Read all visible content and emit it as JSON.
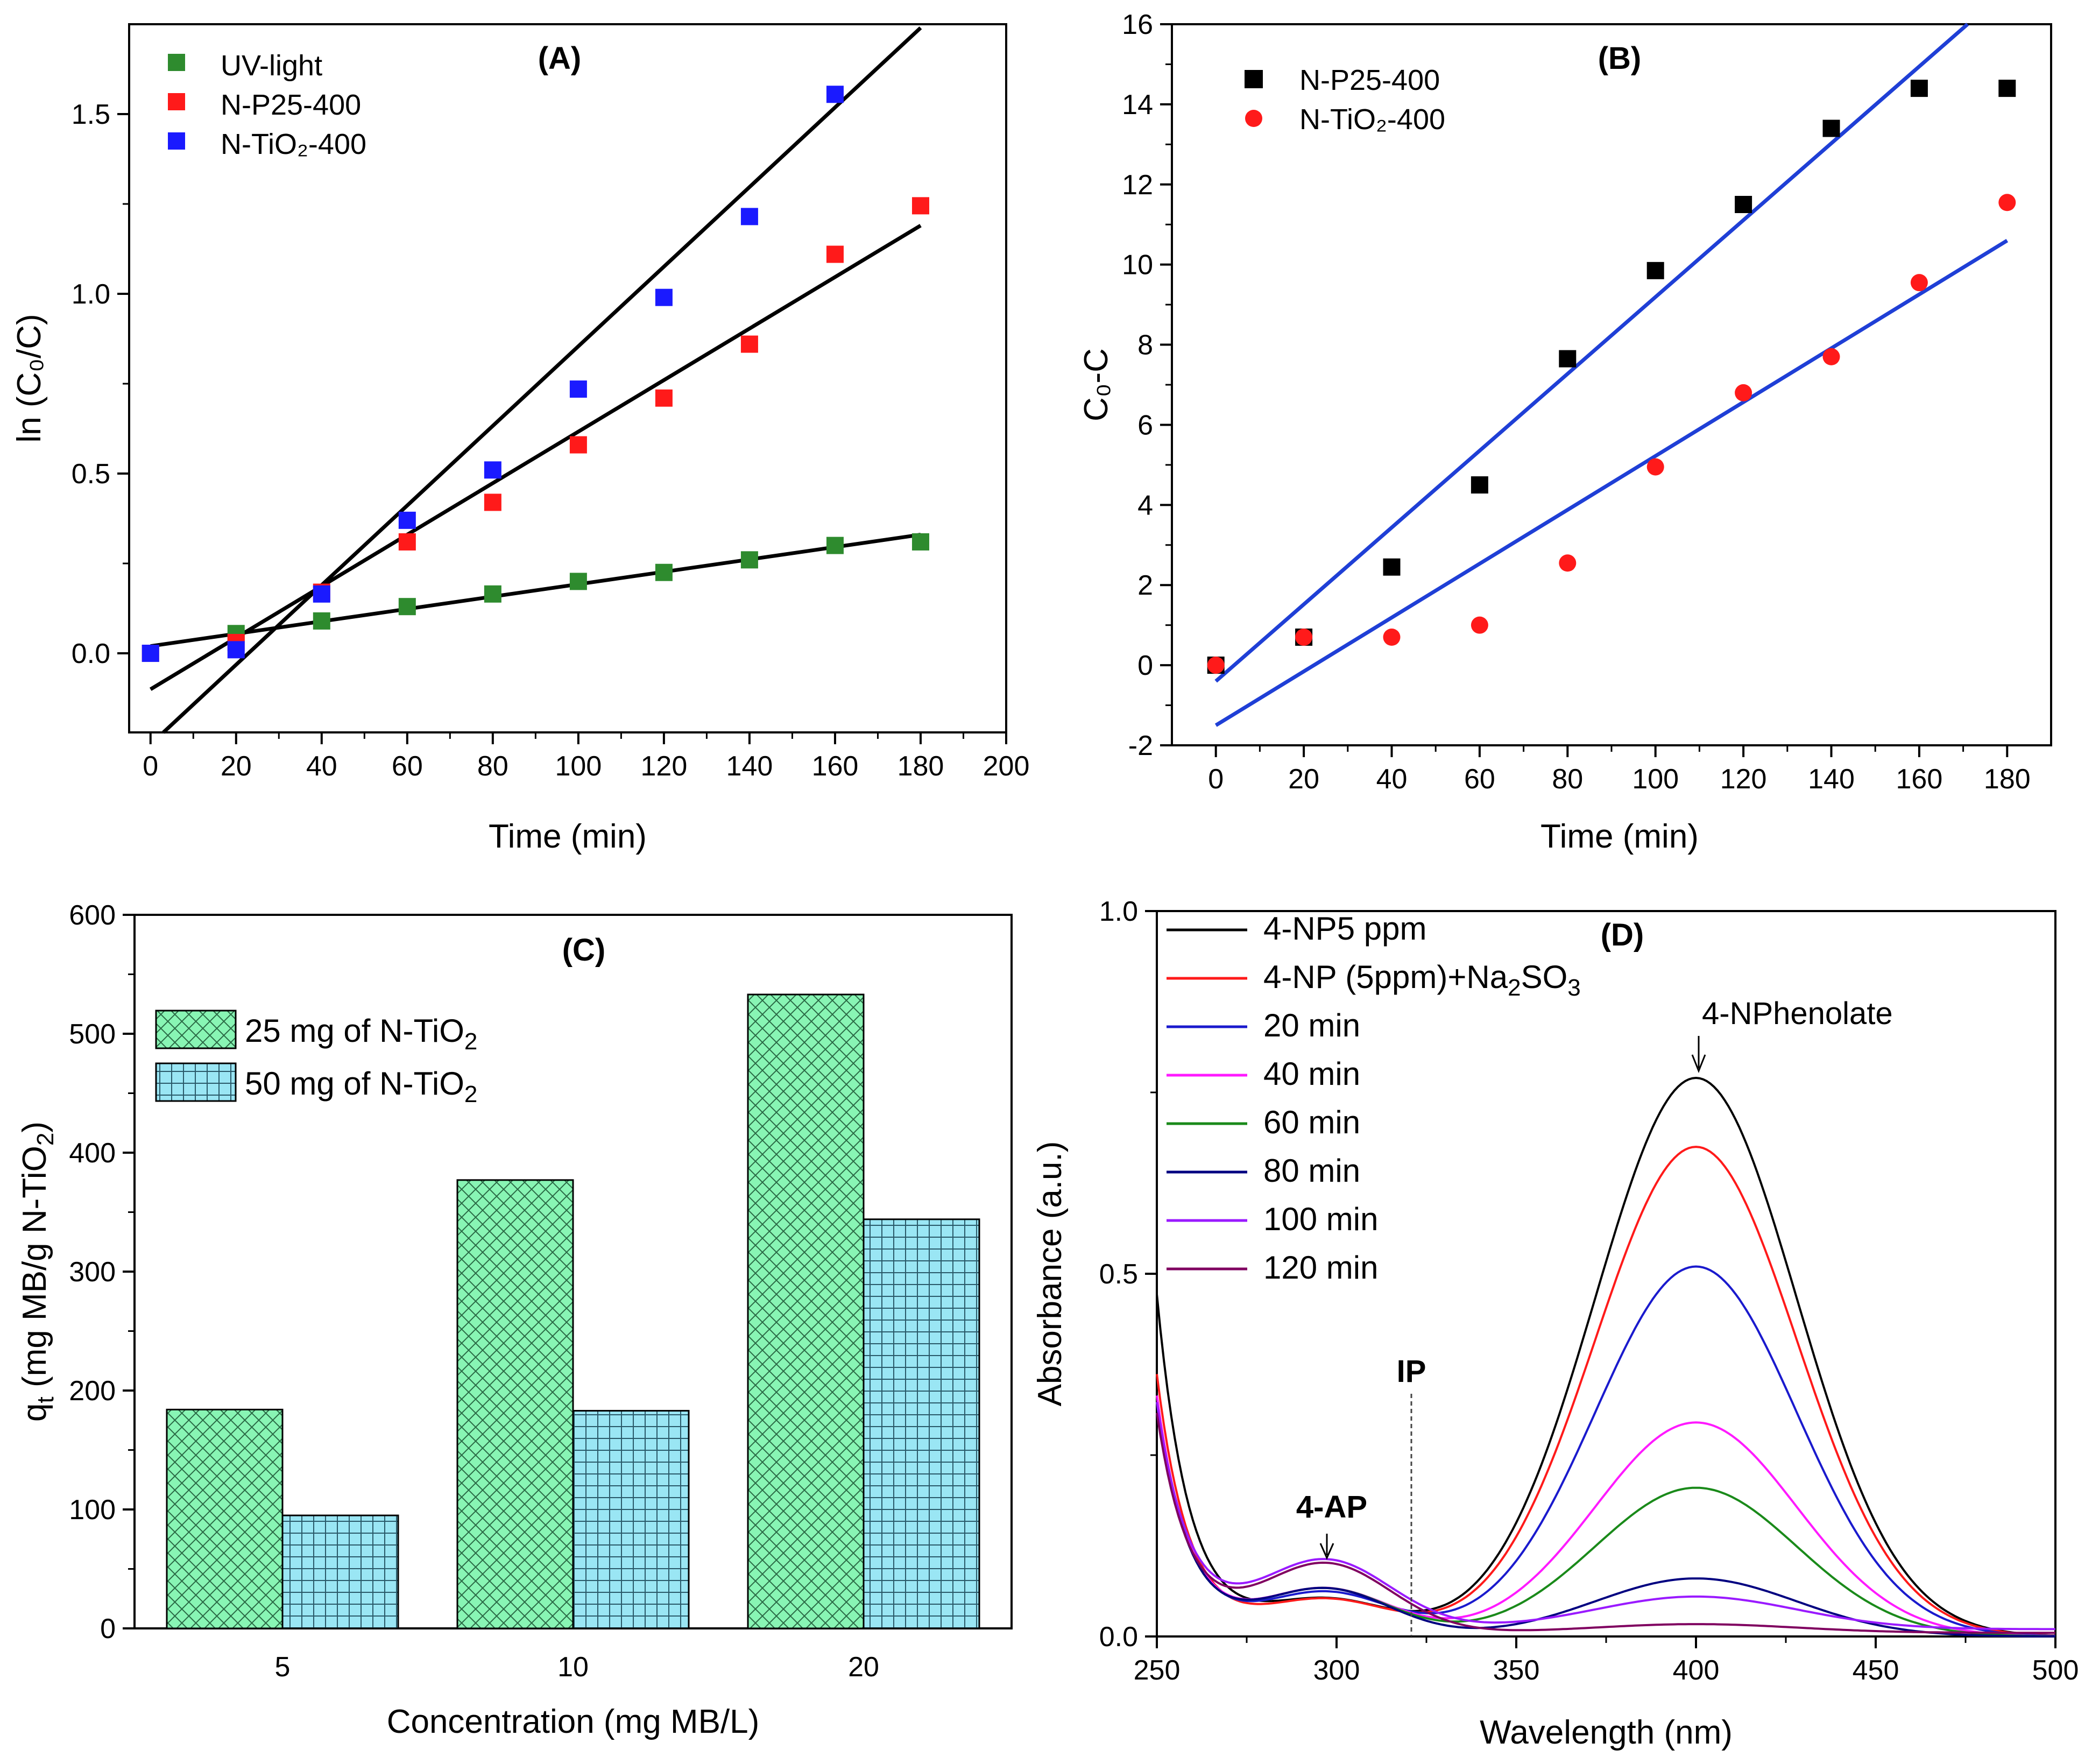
{
  "colors": {
    "green": "#2e8b2e",
    "red": "#ff1a1a",
    "blue": "#1a1aff",
    "black": "#000000",
    "fitA": "#000000",
    "fitB": "#1f3fd6",
    "barGreen": "#88f5b4",
    "barBlue": "#9ae6f4"
  },
  "chart_data": [
    {
      "id": "A",
      "type": "scatter",
      "panel_label": "(A)",
      "xlabel": "Time (min)",
      "ylabel": "ln (C₀/C)",
      "xlim": [
        -5,
        200
      ],
      "ylim": [
        -0.22,
        1.75
      ],
      "xticks": [
        0,
        20,
        40,
        60,
        80,
        100,
        120,
        140,
        160,
        180,
        200
      ],
      "yticks": [
        0.0,
        0.5,
        1.0,
        1.5
      ],
      "ytick_labels": [
        "0.0",
        "0.5",
        "1.0",
        "1.5"
      ],
      "legend_position": "top-left",
      "series": [
        {
          "name": "UV-light",
          "color_key": "green",
          "marker": "square",
          "x": [
            20,
            40,
            60,
            80,
            100,
            120,
            140,
            160,
            180
          ],
          "y": [
            0.055,
            0.09,
            0.13,
            0.165,
            0.2,
            0.225,
            0.26,
            0.3,
            0.31
          ],
          "fit": {
            "x": [
              0,
              180
            ],
            "y": [
              0.02,
              0.33
            ]
          }
        },
        {
          "name": "N-P25-400",
          "color_key": "red",
          "marker": "square",
          "x": [
            0,
            20,
            40,
            60,
            80,
            100,
            120,
            140,
            160,
            180
          ],
          "y": [
            0.0,
            0.03,
            0.17,
            0.31,
            0.42,
            0.58,
            0.71,
            0.86,
            1.11,
            1.245
          ],
          "fit": {
            "x": [
              0,
              180
            ],
            "y": [
              -0.1,
              1.19
            ]
          }
        },
        {
          "name": "N-TiO₂-400",
          "color_key": "blue",
          "marker": "square",
          "x": [
            0,
            20,
            40,
            60,
            80,
            100,
            120,
            140,
            160
          ],
          "y": [
            0.0,
            0.01,
            0.165,
            0.37,
            0.51,
            0.735,
            0.99,
            1.215,
            1.555
          ],
          "fit": {
            "x": [
              3,
              180
            ],
            "y": [
              -0.22,
              1.74
            ]
          }
        }
      ]
    },
    {
      "id": "B",
      "type": "scatter",
      "panel_label": "(B)",
      "xlabel": "Time (min)",
      "ylabel": "C₀-C",
      "xlim": [
        -10,
        190
      ],
      "ylim": [
        -2,
        16
      ],
      "xticks": [
        0,
        20,
        40,
        60,
        80,
        100,
        120,
        140,
        160,
        180
      ],
      "yticks": [
        -2,
        0,
        2,
        4,
        6,
        8,
        10,
        12,
        14,
        16
      ],
      "legend_position": "top-left",
      "series": [
        {
          "name": "N-P25-400",
          "color_key": "black",
          "marker": "square",
          "x": [
            0,
            20,
            40,
            60,
            80,
            100,
            120,
            140,
            160,
            180
          ],
          "y": [
            0.0,
            0.7,
            2.45,
            4.5,
            7.65,
            9.85,
            11.5,
            13.4,
            14.4,
            14.4
          ],
          "fit": {
            "x": [
              0,
              171
            ],
            "y": [
              -0.4,
              16.0
            ]
          }
        },
        {
          "name": "N-TiO₂-400",
          "color_key": "red",
          "marker": "circle",
          "x": [
            0,
            20,
            40,
            60,
            80,
            100,
            120,
            140,
            160,
            180
          ],
          "y": [
            0.0,
            0.7,
            0.7,
            1.0,
            2.55,
            4.95,
            6.8,
            7.7,
            9.55,
            11.55
          ],
          "fit": {
            "x": [
              0,
              180
            ],
            "y": [
              -1.5,
              10.6
            ]
          }
        }
      ]
    },
    {
      "id": "C",
      "type": "bar",
      "panel_label": "(C)",
      "xlabel": "Concentration (mg MB/L)",
      "ylabel": "q",
      "ylabel_subscript": "t",
      "ylabel_rest": " (mg MB/g N-TiO",
      "ylabel_sub2": "2",
      "ylabel_close": ")",
      "categories": [
        "5",
        "10",
        "20"
      ],
      "ylim": [
        0,
        600
      ],
      "yticks": [
        0,
        100,
        200,
        300,
        400,
        500,
        600
      ],
      "legend_position": "top-left",
      "series": [
        {
          "name": "25 mg of N-TiO",
          "name_sub": "2",
          "color_key": "barGreen",
          "pattern": "crosshatch",
          "values": [
            184,
            377,
            533
          ]
        },
        {
          "name": "50 mg of N-TiO",
          "name_sub": "2",
          "color_key": "barBlue",
          "pattern": "grid",
          "values": [
            95,
            183,
            344
          ]
        }
      ]
    },
    {
      "id": "D",
      "type": "line",
      "panel_label": "(D)",
      "xlabel": "Wavelength (nm)",
      "ylabel": "Absorbance (a.u.)",
      "xlim": [
        250,
        500
      ],
      "ylim": [
        0,
        1.0
      ],
      "xticks": [
        250,
        300,
        350,
        400,
        450,
        500
      ],
      "yticks": [
        0.0,
        0.5,
        1.0
      ],
      "ytick_labels": [
        "0.0",
        "0.5",
        "1.0"
      ],
      "legend_position": "top-left",
      "annotations": [
        {
          "text": "4-NPhenolate",
          "x": 400,
          "y": 0.77
        },
        {
          "text": "4-AP",
          "x": 296,
          "y": 0.1
        },
        {
          "text": "IP",
          "x": 320,
          "y": 0.39
        }
      ],
      "series": [
        {
          "name": "4-NP5 ppm",
          "color": "#000000",
          "peak": 0.77,
          "trough": 0.03,
          "side": 0.05,
          "start": 0.47,
          "baseline": 0.0
        },
        {
          "name": "4-NP (5ppm)+Na",
          "name_sub": "2",
          "name_mid": "SO",
          "name_sub2": "3",
          "color": "#ff1a1a",
          "peak": 0.675,
          "trough": 0.04,
          "side": 0.05,
          "start": 0.36,
          "baseline": 0.0
        },
        {
          "name": "20 min",
          "color": "#1a1acd",
          "peak": 0.51,
          "trough": 0.045,
          "side": 0.06,
          "start": 0.33,
          "baseline": 0.0
        },
        {
          "name": "40 min",
          "color": "#ff1aff",
          "peak": 0.295,
          "trough": 0.05,
          "side": 0.065,
          "start": 0.33,
          "baseline": 0.0
        },
        {
          "name": "60 min",
          "color": "#1a8a1a",
          "peak": 0.205,
          "trough": 0.05,
          "side": 0.065,
          "start": 0.32,
          "baseline": 0.0
        },
        {
          "name": "80 min",
          "color": "#000080",
          "peak": 0.08,
          "trough": 0.04,
          "side": 0.065,
          "start": 0.32,
          "baseline": 0.0
        },
        {
          "name": "100 min",
          "color": "#9a1aff",
          "peak": 0.045,
          "trough": 0.07,
          "side": 0.095,
          "start": 0.31,
          "baseline": 0.01
        },
        {
          "name": "120 min",
          "color": "#800060",
          "peak": 0.012,
          "trough": 0.06,
          "side": 0.095,
          "start": 0.3,
          "baseline": 0.005
        }
      ]
    }
  ]
}
